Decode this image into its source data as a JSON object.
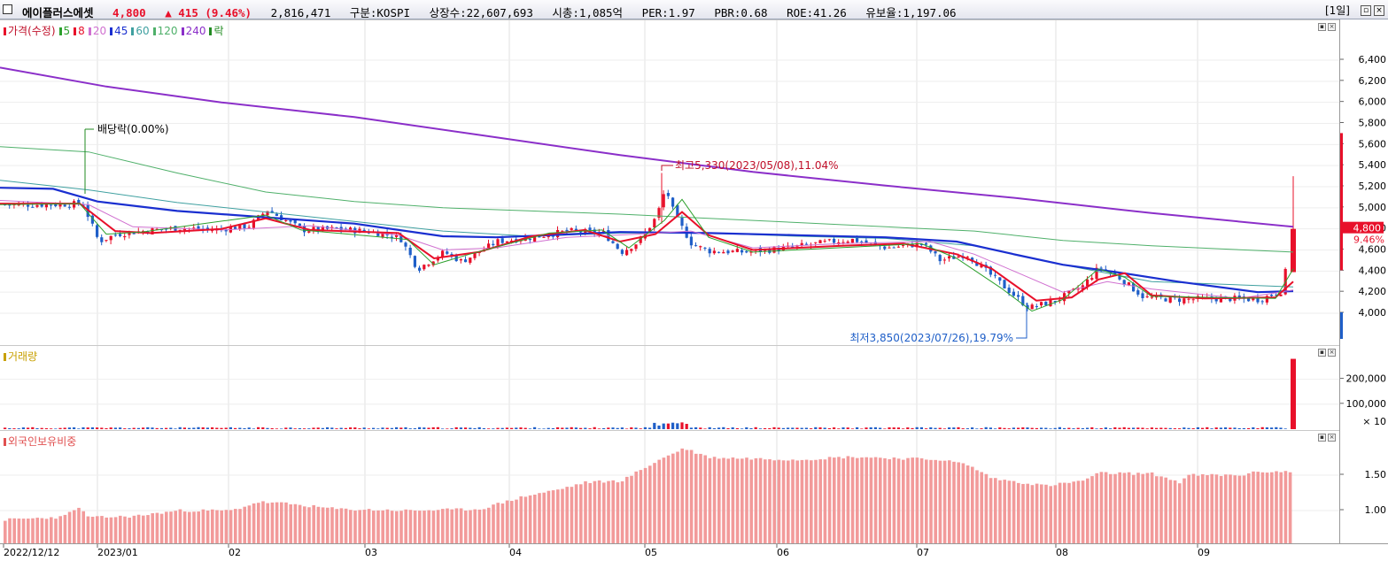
{
  "header": {
    "name": "에이플러스에셋",
    "price": "4,800",
    "change_arrow": "▲",
    "change": "415",
    "change_pct": "(9.46%)",
    "volume": "2,816,471",
    "market": "구분:KOSPI",
    "shares": "상장수:22,607,693",
    "cap": "시총:1,085억",
    "per": "PER:1.97",
    "pbr": "PBR:0.68",
    "roe": "ROE:41.26",
    "reserve": "유보율:1,197.06",
    "period": "[1일]"
  },
  "price_panel": {
    "legend": [
      {
        "label": "가격(수정)",
        "color": "#e8102a"
      },
      {
        "label": "5",
        "color": "#2ca02c"
      },
      {
        "label": "8",
        "color": "#e8102a"
      },
      {
        "label": "20",
        "color": "#d070d0"
      },
      {
        "label": "45",
        "color": "#1a2fd0"
      },
      {
        "label": "60",
        "color": "#3fa0a0"
      },
      {
        "label": "120",
        "color": "#4fb06a"
      },
      {
        "label": "240",
        "color": "#8b2fc9"
      },
      {
        "label": "락",
        "color": "#228b22"
      }
    ],
    "annotations": {
      "dividend": "배당락(0.00%)",
      "high": "최고5,330(2023/05/08),11.04%",
      "low": "최저3,850(2023/07/26),19.79%"
    },
    "current_price_label": "4,800",
    "current_pct_label": "9.46%",
    "y_ticks": [
      "6,400",
      "6,200",
      "6,000",
      "5,800",
      "5,600",
      "5,400",
      "5,200",
      "5,000",
      "4,800",
      "4,600",
      "4,400",
      "4,200",
      "4,000"
    ]
  },
  "volume_panel": {
    "legend": "거래량",
    "legend_color": "#c8a000",
    "y_ticks": [
      "200,000",
      "100,000"
    ],
    "unit": "× 10"
  },
  "foreign_panel": {
    "legend": "외국인보유비중",
    "legend_color": "#e05050",
    "y_ticks": [
      "1.50",
      "1.00"
    ]
  },
  "x_axis": {
    "labels": [
      "2022/12/12",
      "2023/01",
      "02",
      "03",
      "04",
      "05",
      "06",
      "07",
      "08",
      "09"
    ]
  },
  "colors": {
    "up": "#e8102a",
    "down": "#1f5fc8",
    "ma240": "#8b2fc9",
    "ma120": "#4fb06a",
    "ma60": "#3fa0a0",
    "ma45": "#1a2fd0",
    "ma20": "#d070d0",
    "ma8": "#e8102a",
    "ma5": "#2ca02c",
    "foreign_bar": "#f29a9a"
  }
}
